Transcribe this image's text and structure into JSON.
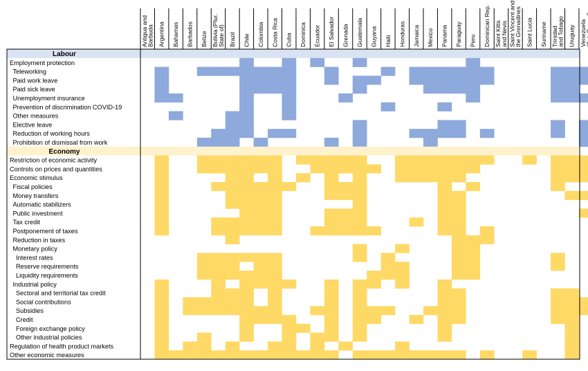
{
  "chart_data": {
    "type": "heatmap",
    "colors": {
      "labour": "#8EA9DB",
      "labour_header": "#DAE3F3",
      "economy": "#FFD966",
      "economy_header": "#FFF2CC",
      "grid": "#000000"
    },
    "countries": [
      "Antigua and Barbuda",
      "Argentina",
      "Bahamas",
      "Barbados",
      "Belize",
      "Bolivia (Plur. State of)",
      "Brazil",
      "Chile",
      "Colombia",
      "Costa Rica",
      "Cuba",
      "Dominica",
      "Ecuador",
      "El Salvador",
      "Grenada",
      "Guatemala",
      "Guyana",
      "Haiti",
      "Honduras",
      "Jamaica",
      "Mexico",
      "Panama",
      "Paraguay",
      "Peru",
      "Dominican Rep.",
      "Saint Kitts and Nevis",
      "Saint Vincent and the Grenadines",
      "Saint Lucia",
      "Suriname",
      "Trinidad and Tobago",
      "Uruguay",
      "Venezuela (Bol. Rep. of)"
    ],
    "country_label_lines": [
      [
        "Antigua and",
        "Barbuda"
      ],
      [
        "Argentina"
      ],
      [
        "Bahamas"
      ],
      [
        "Barbados"
      ],
      [
        "Belize"
      ],
      [
        "Bolivia (Plur.",
        "State of)"
      ],
      [
        "Brazil"
      ],
      [
        "Chile"
      ],
      [
        "Colombia"
      ],
      [
        "Costa Rica"
      ],
      [
        "Cuba"
      ],
      [
        "Dominica"
      ],
      [
        "Ecuador"
      ],
      [
        "El Salvador"
      ],
      [
        "Grenada"
      ],
      [
        "Guatemala"
      ],
      [
        "Guyana"
      ],
      [
        "Haiti"
      ],
      [
        "Honduras"
      ],
      [
        "Jamaica"
      ],
      [
        "Mexico"
      ],
      [
        "Panama"
      ],
      [
        "Paraguay"
      ],
      [
        "Peru"
      ],
      [
        "Dominican Rep."
      ],
      [
        "Saint Kitts",
        "and Nevis"
      ],
      [
        "Saint Vincent and",
        "the Grenadines"
      ],
      [
        "Saint Lucia"
      ],
      [
        "Suriname"
      ],
      [
        "Trinidad",
        "and Tobago"
      ],
      [
        "Uruguay"
      ],
      [
        "Venezuela",
        "(Bol. Rep. of)"
      ]
    ],
    "sections": [
      {
        "name": "Labour",
        "color_key": "labour",
        "rows": [
          {
            "label": "Employment protection",
            "indent": 0,
            "active": [
              7,
              10,
              12,
              15,
              23
            ]
          },
          {
            "label": "Teleworking",
            "indent": 1,
            "active": [
              1,
              4,
              5,
              6,
              7,
              8,
              9,
              10,
              13,
              17,
              19,
              20,
              21,
              22,
              23,
              24,
              29,
              30,
              31
            ]
          },
          {
            "label": "Paid work leave",
            "indent": 1,
            "active": [
              1,
              7,
              8,
              9,
              10,
              13,
              15,
              16,
              19,
              20,
              21,
              22,
              23,
              24,
              29,
              30,
              31
            ]
          },
          {
            "label": "Paid sick leave",
            "indent": 1,
            "active": [
              1,
              7,
              8,
              9,
              10,
              15,
              20,
              21,
              22,
              23,
              29,
              30
            ]
          },
          {
            "label": "Unemployment insurance",
            "indent": 1,
            "active": [
              1,
              2,
              7,
              10,
              14,
              23,
              29,
              30,
              31
            ]
          },
          {
            "label": "Prevention of discrimination COVID-19",
            "indent": 1,
            "active": [
              7,
              10,
              17,
              21
            ]
          },
          {
            "label": "Other measures",
            "indent": 1,
            "active": [
              2,
              6,
              7,
              10
            ]
          },
          {
            "label": "Elective leave",
            "indent": 1,
            "active": [
              6,
              7,
              15,
              21,
              22,
              29,
              31
            ]
          },
          {
            "label": "Reduction of working hours",
            "indent": 1,
            "active": [
              5,
              6,
              7,
              9,
              10,
              15,
              19,
              20,
              21,
              22,
              24,
              29,
              31
            ]
          },
          {
            "label": "Prohibition of dismissal from work",
            "indent": 1,
            "active": [
              4,
              5,
              6,
              8,
              13,
              15,
              20,
              31
            ]
          }
        ]
      },
      {
        "name": "Economy",
        "color_key": "economy",
        "rows": [
          {
            "label": "Restriction of economic activity",
            "indent": 0,
            "active": [
              1,
              4,
              5,
              6,
              7,
              8,
              9,
              11,
              12,
              13,
              14,
              15,
              18,
              19,
              20,
              21,
              22,
              23,
              24,
              27,
              29,
              30,
              31
            ]
          },
          {
            "label": "Controls on prices and quantities",
            "indent": 0,
            "active": [
              1,
              4,
              5,
              6,
              7,
              8,
              9,
              12,
              13,
              14,
              15,
              16,
              18,
              19,
              20,
              21,
              22,
              23,
              29,
              30,
              31
            ]
          },
          {
            "label": "Economic stimulus",
            "indent": 0,
            "active": [
              1,
              6,
              7,
              9,
              11,
              13,
              15,
              18,
              19,
              20,
              21,
              22,
              29,
              30,
              31
            ]
          },
          {
            "label": "Fiscal policies",
            "indent": 1,
            "active": [
              1,
              5,
              6,
              7,
              8,
              9,
              10,
              13,
              14,
              15,
              21,
              23,
              29
            ]
          },
          {
            "label": "Money transfers",
            "indent": 1,
            "active": [
              1,
              6,
              7,
              8,
              9,
              13,
              14,
              15,
              21,
              22,
              30,
              31
            ]
          },
          {
            "label": "Automatic stabilizers",
            "indent": 1,
            "active": [
              1,
              6,
              7,
              8,
              9,
              15,
              21,
              22
            ]
          },
          {
            "label": "Public investment",
            "indent": 1,
            "active": [
              1,
              7,
              8,
              9,
              13,
              14,
              15,
              21,
              22,
              31
            ]
          },
          {
            "label": "Tax credit",
            "indent": 1,
            "active": [
              1,
              5,
              6,
              7,
              8,
              9,
              13,
              14,
              15,
              19,
              21,
              22
            ]
          },
          {
            "label": "Postponement of taxes",
            "indent": 1,
            "active": [
              1,
              5,
              6,
              7,
              8,
              9,
              12,
              13,
              14,
              15,
              16,
              21,
              22,
              24
            ]
          },
          {
            "label": "Reduction in taxes",
            "indent": 1,
            "active": [
              6,
              22,
              23,
              24
            ]
          },
          {
            "label": "Monetary policy",
            "indent": 1,
            "active": [
              15,
              18,
              22,
              23
            ]
          },
          {
            "label": "Interest rates",
            "indent": 2,
            "active": [
              4,
              5,
              6,
              7,
              8,
              9,
              15,
              17,
              22,
              23,
              29
            ]
          },
          {
            "label": "Reserve requirements",
            "indent": 2,
            "active": [
              4,
              5,
              6,
              8,
              9,
              17,
              18,
              22,
              23,
              29
            ]
          },
          {
            "label": "Liquidity requirements",
            "indent": 2,
            "active": [
              4,
              5,
              6,
              7,
              8,
              9,
              16,
              17,
              18,
              22,
              23
            ]
          },
          {
            "label": "Industrial policy",
            "indent": 1,
            "active": [
              1,
              5,
              7,
              8,
              9,
              10,
              13,
              15,
              16,
              18,
              21
            ]
          },
          {
            "label": "Sectoral and territorial tax credit",
            "indent": 2,
            "active": [
              1,
              5,
              6,
              7,
              9,
              13,
              15,
              21,
              22,
              29,
              30
            ]
          },
          {
            "label": "Social contributions",
            "indent": 2,
            "active": [
              1,
              3,
              4,
              5,
              6,
              7,
              9,
              13,
              15,
              21,
              22,
              29,
              30,
              31
            ]
          },
          {
            "label": "Subsidies",
            "indent": 2,
            "active": [
              1,
              3,
              4,
              5,
              6,
              7,
              8,
              9,
              12,
              13,
              15,
              16,
              17,
              20,
              21,
              22,
              29,
              30,
              31
            ]
          },
          {
            "label": "Credit",
            "indent": 2,
            "active": [
              1,
              7,
              8,
              9,
              10,
              13,
              15,
              16,
              19,
              21,
              22,
              29,
              30
            ]
          },
          {
            "label": "Foreign exchange policy",
            "indent": 2,
            "active": [
              1,
              7,
              10,
              11,
              13,
              15,
              21,
              30
            ]
          },
          {
            "label": "Other industrial policies",
            "indent": 2,
            "active": [
              1,
              4,
              7,
              10,
              12,
              13,
              15,
              21,
              30
            ]
          },
          {
            "label": "Regulation of health product markets",
            "indent": 0,
            "active": [
              1,
              3,
              4,
              6,
              9,
              10,
              12,
              14,
              18,
              30
            ]
          },
          {
            "label": "Other economic measures",
            "indent": 0,
            "active": [
              1,
              2,
              3,
              4,
              5,
              6,
              7,
              8,
              9,
              10,
              11,
              12,
              13,
              15,
              16,
              17,
              18,
              19,
              20,
              21,
              22,
              24,
              27,
              30
            ]
          }
        ]
      }
    ]
  }
}
